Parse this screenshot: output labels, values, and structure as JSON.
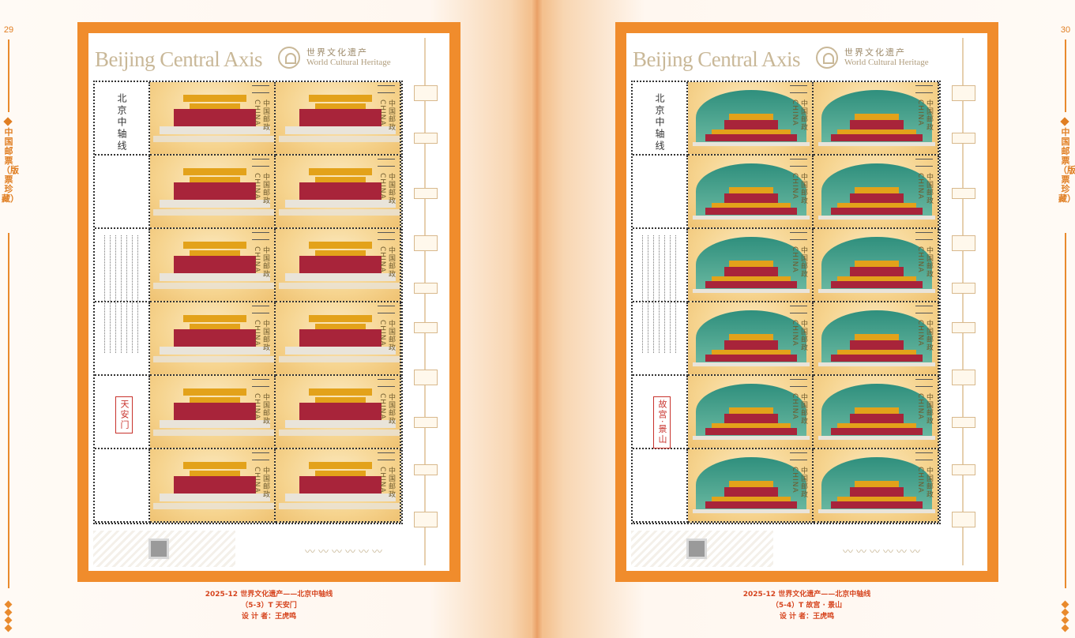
{
  "left_page": {
    "page_number": "29",
    "header": {
      "title_en": "Beijing Central Axis",
      "title_cn": "世界文化遗产",
      "subtitle_en": "World Cultural Heritage"
    },
    "margin": {
      "vertical_title": "北京中轴线",
      "seal_text": "天安门"
    },
    "caption": {
      "line1": "2025-12 世界文化遗产——北京中轴线",
      "line2": "（5-3）T 天安门",
      "line3": "设 计 者：王虎鸣"
    }
  },
  "right_page": {
    "page_number": "30",
    "header": {
      "title_en": "Beijing Central Axis",
      "title_cn": "世界文化遗产",
      "subtitle_en": "World Cultural Heritage"
    },
    "margin": {
      "vertical_title": "北京中轴线",
      "seal_text": "故宫·景山"
    },
    "caption": {
      "line1": "2025-12 世界文化遗产——北京中轴线",
      "line2": "（5-4）T 故宫 · 景山",
      "line3": "设 计 者：王虎鸣"
    }
  },
  "rail_text": "中国邮票（版票珍藏）",
  "stamp_text": "中国邮政 CHINA",
  "colors": {
    "frame": "#f08c2c",
    "caption": "#d6451f",
    "rail": "#e07e22"
  }
}
